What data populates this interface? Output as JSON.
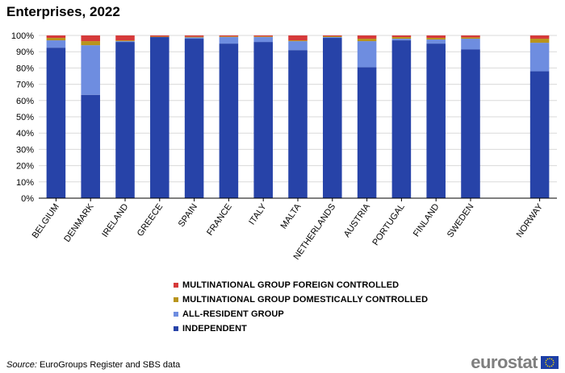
{
  "title": "Enterprises, 2022",
  "source_label": "Source:",
  "source_text": " EuroGroups Register and SBS data",
  "logo_text": "eurostat",
  "colors": {
    "independent": "#2743a8",
    "all_resident": "#6e8de0",
    "domestic": "#b8941c",
    "foreign": "#d63a3a",
    "grid": "#d9d9d9",
    "axis": "#000000"
  },
  "legend": [
    {
      "label": "MULTINATIONAL GROUP FOREIGN CONTROLLED",
      "color": "#d63a3a"
    },
    {
      "label": "MULTINATIONAL GROUP DOMESTICALLY CONTROLLED",
      "color": "#b8941c"
    },
    {
      "label": "ALL-RESIDENT GROUP",
      "color": "#6e8de0"
    },
    {
      "label": "INDEPENDENT",
      "color": "#2743a8"
    }
  ],
  "chart_data": {
    "type": "bar",
    "stacked": true,
    "categories": [
      "BELGIUM",
      "DENMARK",
      "IRELAND",
      "GREECE",
      "SPAIN",
      "FRANCE",
      "ITALY",
      "MALTA",
      "NETHERLANDS",
      "AUSTRIA",
      "PORTUGAL",
      "FINLAND",
      "SWEDEN",
      "NORWAY"
    ],
    "gap_before": "NORWAY",
    "series": [
      {
        "name": "INDEPENDENT",
        "color": "#2743a8",
        "values": [
          92.5,
          63.5,
          96.0,
          99.0,
          98.0,
          95.0,
          96.0,
          91.0,
          98.5,
          80.5,
          97.0,
          95.0,
          91.5,
          78.0
        ]
      },
      {
        "name": "ALL-RESIDENT GROUP",
        "color": "#6e8de0",
        "values": [
          4.5,
          30.5,
          0.5,
          0.0,
          0.8,
          4.0,
          3.0,
          5.5,
          0.5,
          16.0,
          1.0,
          2.5,
          6.5,
          17.5
        ]
      },
      {
        "name": "MULTINATIONAL GROUP DOMESTICALLY CONTROLLED",
        "color": "#b8941c",
        "values": [
          1.5,
          2.5,
          0.5,
          0.3,
          0.4,
          0.4,
          0.4,
          0.5,
          0.5,
          1.5,
          1.0,
          1.0,
          0.8,
          2.5
        ]
      },
      {
        "name": "MULTINATIONAL GROUP FOREIGN CONTROLLED",
        "color": "#d63a3a",
        "values": [
          1.5,
          3.5,
          3.0,
          0.7,
          0.8,
          0.6,
          0.6,
          3.0,
          0.5,
          2.0,
          1.0,
          1.5,
          1.2,
          2.0
        ]
      }
    ],
    "y_ticks": [
      "0%",
      "10%",
      "20%",
      "30%",
      "40%",
      "50%",
      "60%",
      "70%",
      "80%",
      "90%",
      "100%"
    ],
    "ylim": [
      0,
      100
    ],
    "grid": true,
    "legend_position": "bottom"
  }
}
